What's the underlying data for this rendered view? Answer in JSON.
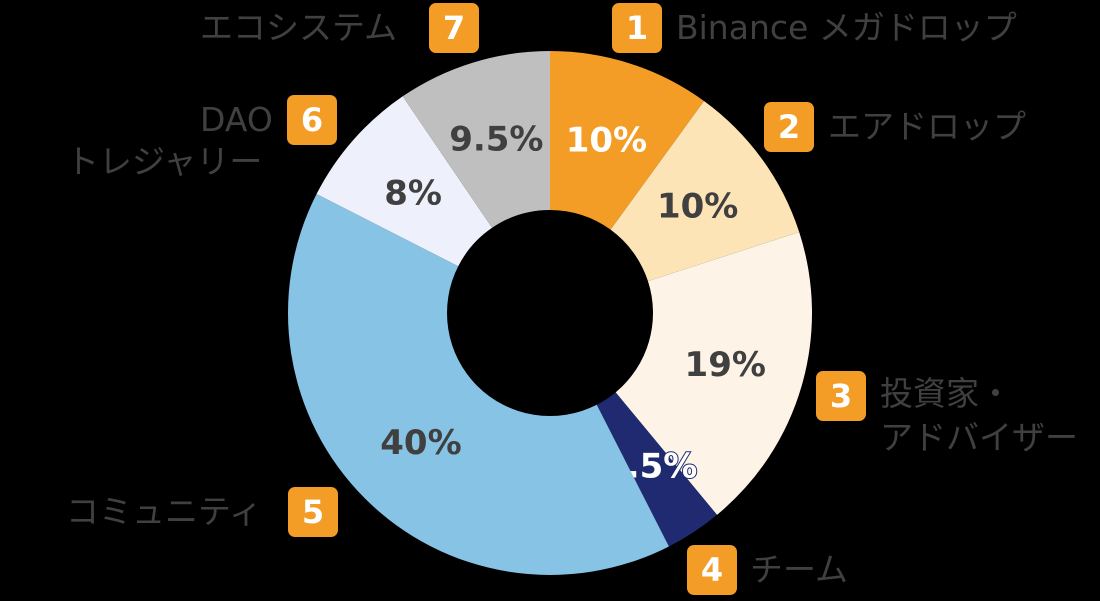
{
  "chart_data": {
    "type": "pie",
    "donut": true,
    "title": "",
    "slices": [
      {
        "id": 1,
        "label": "Binance メガドロップ",
        "value": 10,
        "display": "10%",
        "color": "#F39C26",
        "text_color": "#FFFFFF"
      },
      {
        "id": 2,
        "label": "エアドロップ",
        "value": 10,
        "display": "10%",
        "color": "#FDE4B6",
        "text_color": "#404040"
      },
      {
        "id": 3,
        "label": "投資家・アドバイザー",
        "value": 19,
        "display": "19%",
        "color": "#FEF3E7",
        "text_color": "#404040"
      },
      {
        "id": 4,
        "label": "チーム",
        "value": 3.5,
        "display": "3.5%",
        "color": "#1F2A70",
        "text_color": "#FFFFFF"
      },
      {
        "id": 5,
        "label": "コミュニティ",
        "value": 40,
        "display": "40%",
        "color": "#87C3E4",
        "text_color": "#404040"
      },
      {
        "id": 6,
        "label": "DAO トレジャリー",
        "value": 8,
        "display": "8%",
        "color": "#EEF0FB",
        "text_color": "#404040"
      },
      {
        "id": 7,
        "label": "エコシステム",
        "value": 9.5,
        "display": "9.5%",
        "color": "#BFBFBF",
        "text_color": "#404040"
      }
    ],
    "legend_position": "around"
  },
  "labels": {
    "l1": {
      "badge": "1",
      "text": "Binance メガドロップ"
    },
    "l2": {
      "badge": "2",
      "text": "エアドロップ"
    },
    "l3": {
      "badge": "3",
      "line1": "投資家・",
      "line2": "アドバイザー"
    },
    "l4": {
      "badge": "4",
      "text": "チーム"
    },
    "l5": {
      "badge": "5",
      "text": "コミュニティ"
    },
    "l6": {
      "badge": "6",
      "line1": "DAO",
      "line2": "トレジャリー"
    },
    "l7": {
      "badge": "7",
      "text": "エコシステム"
    }
  }
}
